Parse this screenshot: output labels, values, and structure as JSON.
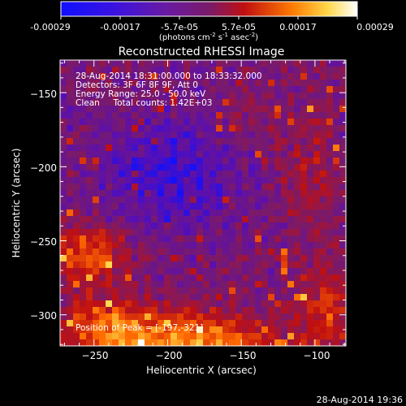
{
  "chart_data": {
    "type": "heatmap",
    "title": "Reconstructed RHESSI Image",
    "xlabel": "Heliocentric X (arcsec)",
    "ylabel": "Heliocentric Y (arcsec)",
    "xlim": [
      -273,
      -79
    ],
    "ylim": [
      -321,
      -128
    ],
    "x_ticks": [
      -250,
      -200,
      -150,
      -100
    ],
    "y_ticks": [
      -150,
      -200,
      -250,
      -300
    ],
    "x_tick_labels": [
      "−250",
      "−200",
      "−150",
      "−100"
    ],
    "y_tick_labels": [
      "−150",
      "−200",
      "−250",
      "−300"
    ],
    "info_lines": [
      "28-Aug-2014 18:31:00.000 to 18:33:32.000",
      "Detectors: 3F 6F 8F 9F, Att 0",
      "Energy Range: 25.0 - 50.0 keV",
      "Clean     Total counts: 1.42E+03"
    ],
    "peak_label": "Position of Peak = [-197,-321]",
    "peak_position": [
      -197,
      -321
    ],
    "colorbar": {
      "range": [
        -0.00029,
        0.00029
      ],
      "tick_labels": [
        "-0.00029",
        "-0.00017",
        "-5.7e-05",
        "5.7e-05",
        "0.00017",
        "0.00029"
      ],
      "units_base": "(photons cm",
      "units_sup1": "-2",
      "units_mid": " s",
      "units_sup2": "-1",
      "units_end": " asec",
      "units_sup3": "-2",
      "units_close": ")",
      "colors": [
        "#1010ff",
        "#5a0fb0",
        "#7a1a6a",
        "#c01010",
        "#ff6a00",
        "#ffd84a",
        "#ffffff"
      ]
    }
  },
  "footer_timestamp": "28-Aug-2014 19:36"
}
